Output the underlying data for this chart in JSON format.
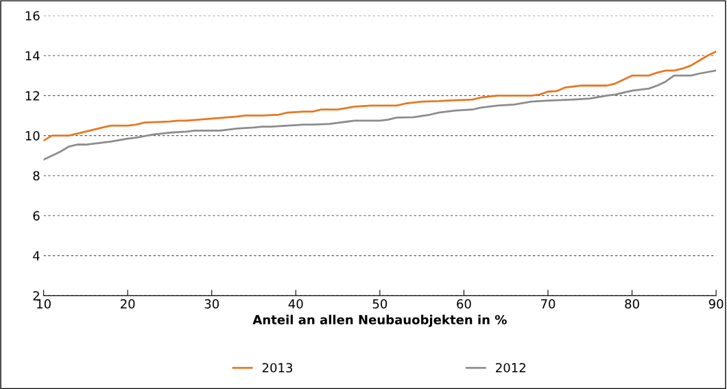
{
  "chart_data": {
    "type": "line",
    "xlabel": "Anteil an allen Neubauobjekten in %",
    "xlim": [
      10,
      90
    ],
    "xticks": [
      10,
      20,
      30,
      40,
      50,
      60,
      70,
      80,
      90
    ],
    "ylim": [
      2,
      16
    ],
    "yticks": [
      2,
      4,
      6,
      8,
      10,
      12,
      14,
      16
    ],
    "grid": "y",
    "line_style": "solid",
    "legend": "bottom",
    "series": [
      {
        "name": "2013",
        "color": "#e87722",
        "x": [
          10,
          11,
          13,
          15,
          17,
          18,
          20,
          21,
          22,
          25,
          26,
          27,
          30,
          33,
          34,
          36,
          38,
          39,
          41,
          42,
          43,
          45,
          47,
          49,
          52,
          53,
          55,
          57,
          58,
          61,
          62,
          64,
          68,
          69,
          70,
          71,
          72,
          73,
          74,
          77,
          78,
          79,
          80,
          82,
          83,
          84,
          85,
          86,
          87,
          88,
          89,
          90
        ],
        "values": [
          9.75,
          10.0,
          10.0,
          10.2,
          10.4,
          10.5,
          10.5,
          10.55,
          10.65,
          10.7,
          10.75,
          10.75,
          10.85,
          10.95,
          11.0,
          11.0,
          11.05,
          11.15,
          11.2,
          11.2,
          11.3,
          11.3,
          11.45,
          11.5,
          11.5,
          11.6,
          11.7,
          11.72,
          11.75,
          11.8,
          11.9,
          12.0,
          12.0,
          12.05,
          12.2,
          12.22,
          12.4,
          12.45,
          12.5,
          12.5,
          12.6,
          12.8,
          13.0,
          13.0,
          13.15,
          13.25,
          13.25,
          13.35,
          13.5,
          13.75,
          14.0,
          14.2
        ]
      },
      {
        "name": "2012",
        "color": "#8c8c8c",
        "x": [
          10,
          12,
          13,
          14,
          15,
          16,
          18,
          20,
          21,
          23,
          25,
          27,
          28,
          31,
          32,
          33,
          35,
          36,
          37,
          39,
          41,
          42,
          44,
          47,
          50,
          51,
          52,
          54,
          56,
          57,
          59,
          61,
          62,
          64,
          66,
          68,
          70,
          73,
          75,
          77,
          78,
          80,
          82,
          83,
          84,
          85,
          87,
          88,
          90
        ],
        "values": [
          8.8,
          9.2,
          9.45,
          9.55,
          9.55,
          9.6,
          9.7,
          9.85,
          9.9,
          10.05,
          10.15,
          10.2,
          10.25,
          10.25,
          10.3,
          10.35,
          10.4,
          10.45,
          10.45,
          10.5,
          10.55,
          10.55,
          10.58,
          10.75,
          10.75,
          10.8,
          10.9,
          10.92,
          11.05,
          11.15,
          11.25,
          11.3,
          11.4,
          11.5,
          11.55,
          11.7,
          11.75,
          11.8,
          11.85,
          12.0,
          12.05,
          12.25,
          12.35,
          12.5,
          12.7,
          13.0,
          13.0,
          13.1,
          13.25
        ]
      }
    ]
  }
}
